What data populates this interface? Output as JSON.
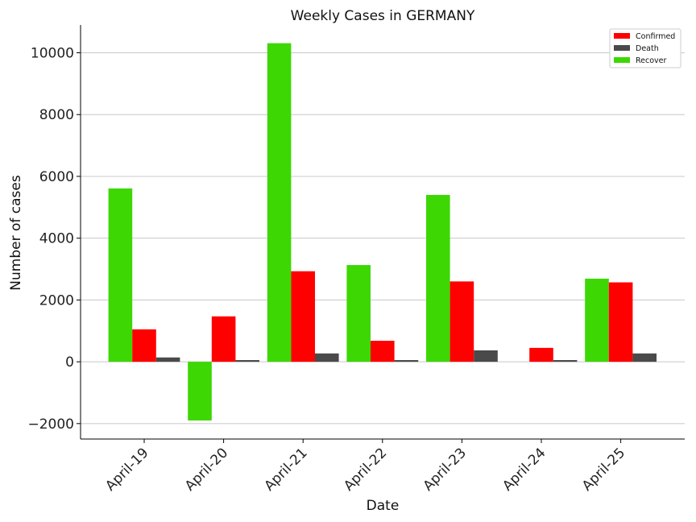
{
  "chart_data": {
    "type": "bar",
    "title": "Weekly Cases in GERMANY",
    "xlabel": "Date",
    "ylabel": "Number of cases",
    "categories": [
      "April-19",
      "April-20",
      "April-21",
      "April-22",
      "April-23",
      "April-24",
      "April-25"
    ],
    "series": [
      {
        "name": "Recover",
        "color": "#3dd703",
        "values": [
          5610,
          -1900,
          10310,
          3130,
          5400,
          0,
          2690
        ]
      },
      {
        "name": "Confirmed",
        "color": "#ff0000",
        "values": [
          1050,
          1470,
          2930,
          680,
          2600,
          450,
          2570
        ]
      },
      {
        "name": "Death",
        "color": "#4a4a4a",
        "values": [
          140,
          55,
          270,
          55,
          370,
          55,
          270
        ]
      }
    ],
    "legend_order": [
      "Confirmed",
      "Death",
      "Recover"
    ],
    "legend_position": "top-right",
    "ylim": [
      -2500,
      10900
    ],
    "yticks": [
      -2000,
      0,
      2000,
      4000,
      6000,
      8000,
      10000
    ],
    "ytick_labels": [
      "−2000",
      "0",
      "2000",
      "4000",
      "6000",
      "8000",
      "10000"
    ],
    "grid": "horizontal",
    "xtick_rotation": 45
  }
}
